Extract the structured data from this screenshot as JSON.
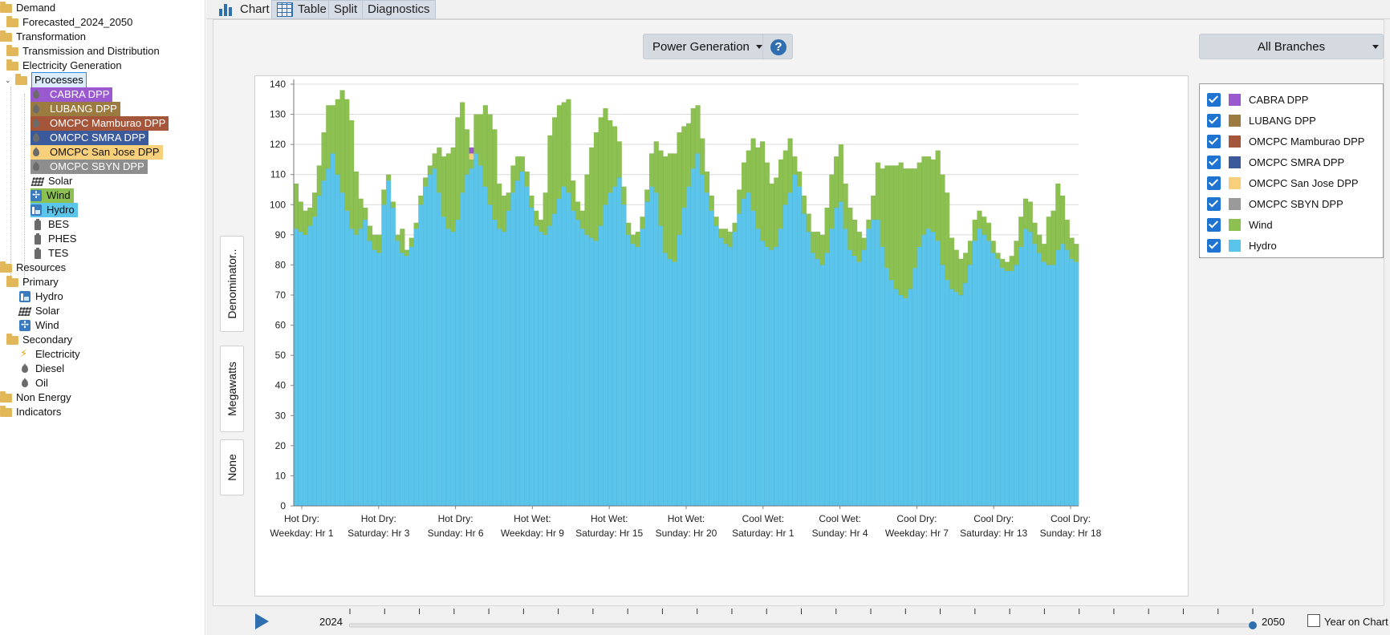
{
  "tree": {
    "demand": "Demand",
    "forecasted": "Forecasted_2024_2050",
    "transformation": "Transformation",
    "transmission": "Transmission and Distribution",
    "electricity_generation": "Electricity Generation",
    "processes": "Processes",
    "process_items": [
      {
        "label": "CABRA DPP",
        "color": "#9b59d0"
      },
      {
        "label": "LUBANG DPP",
        "color": "#9b7b3f"
      },
      {
        "label": "OMCPC Mamburao DPP",
        "color": "#a4553a"
      },
      {
        "label": "OMCPC SMRA DPP",
        "color": "#3b5a9b"
      },
      {
        "label": "OMCPC San Jose DPP",
        "color": "#f8cf7a"
      },
      {
        "label": "OMCPC SBYN DPP",
        "color": "#8e8e8e"
      }
    ],
    "solar": "Solar",
    "wind": "Wind",
    "hydro": "Hydro",
    "bes": "BES",
    "phes": "PHES",
    "tes": "TES",
    "resources": "Resources",
    "primary": "Primary",
    "primary_hydro": "Hydro",
    "primary_solar": "Solar",
    "primary_wind": "Wind",
    "secondary": "Secondary",
    "electricity": "Electricity",
    "diesel": "Diesel",
    "oil": "Oil",
    "non_energy": "Non Energy",
    "indicators": "Indicators"
  },
  "tabs": {
    "chart": "Chart",
    "table": "Table",
    "split": "Split",
    "diagnostics": "Diagnostics"
  },
  "toolbar": {
    "variable": "Power Generation",
    "help": "?",
    "branches": "All Branches"
  },
  "side_buttons": {
    "denominator": "Denominator..",
    "units": "Megawatts",
    "none": "None"
  },
  "timeline": {
    "start_year": "2024",
    "end_year": "2050",
    "year_on_chart": "Year on Chart"
  },
  "colors": {
    "hydro": "#5bc4ea",
    "wind": "#8cc152",
    "accent": "#2f6fb0"
  },
  "chart_data": {
    "type": "area",
    "stacked": true,
    "ylim": [
      0,
      140
    ],
    "yticks": [
      0,
      10,
      20,
      30,
      40,
      50,
      60,
      70,
      80,
      90,
      100,
      110,
      120,
      130,
      140
    ],
    "grid": true,
    "legend_position": "right",
    "x_tick_labels": [
      [
        "Hot Dry:",
        "Weekday: Hr 1"
      ],
      [
        "Hot Dry:",
        "Saturday: Hr 3"
      ],
      [
        "Hot Dry:",
        "Sunday: Hr 6"
      ],
      [
        "Hot Wet:",
        "Weekday: Hr 9"
      ],
      [
        "Hot Wet:",
        "Saturday: Hr 15"
      ],
      [
        "Hot Wet:",
        "Sunday: Hr 20"
      ],
      [
        "Cool Wet:",
        "Saturday: Hr 1"
      ],
      [
        "Cool Wet:",
        "Sunday: Hr 4"
      ],
      [
        "Cool Dry:",
        "Weekday: Hr 7"
      ],
      [
        "Cool Dry:",
        "Saturday: Hr 13"
      ],
      [
        "Cool Dry:",
        "Sunday: Hr 18"
      ]
    ],
    "legend": [
      {
        "name": "CABRA  DPP",
        "color": "#9b59d0"
      },
      {
        "name": "LUBANG  DPP",
        "color": "#9b7b3f"
      },
      {
        "name": "OMCPC Mamburao DPP",
        "color": "#a4553a"
      },
      {
        "name": "OMCPC  SMRA  DPP",
        "color": "#3b5a9b"
      },
      {
        "name": "OMCPC San Jose DPP",
        "color": "#f8cf7a"
      },
      {
        "name": "OMCPC  SBYN  DPP",
        "color": "#9a9a9a"
      },
      {
        "name": "Wind",
        "color": "#8cc152"
      },
      {
        "name": "Hydro",
        "color": "#5bc4ea"
      }
    ],
    "series": [
      {
        "name": "Hydro",
        "color": "#5bc4ea",
        "values": [
          92,
          91,
          90,
          93,
          96,
          103,
          108,
          112,
          117,
          110,
          104,
          98,
          92,
          90,
          92,
          95,
          88,
          85,
          84,
          100,
          108,
          99,
          88,
          84,
          83,
          86,
          92,
          100,
          106,
          110,
          112,
          104,
          96,
          92,
          91,
          95,
          104,
          110,
          112,
          117,
          113,
          106,
          100,
          95,
          92,
          91,
          98,
          104,
          108,
          111,
          106,
          99,
          93,
          91,
          90,
          93,
          97,
          102,
          106,
          104,
          98,
          95,
          92,
          90,
          89,
          88,
          93,
          100,
          104,
          106,
          109,
          100,
          90,
          87,
          86,
          92,
          101,
          106,
          104,
          93,
          84,
          82,
          81,
          90,
          99,
          106,
          112,
          117,
          110,
          104,
          98,
          93,
          89,
          87,
          86,
          91,
          97,
          102,
          104,
          98,
          92,
          88,
          86,
          85,
          86,
          92,
          100,
          104,
          110,
          106,
          97,
          91,
          84,
          82,
          80,
          84,
          92,
          99,
          101,
          92,
          85,
          83,
          81,
          85,
          92,
          95,
          95,
          86,
          79,
          75,
          72,
          70,
          69,
          72,
          79,
          86,
          90,
          92,
          91,
          88,
          80,
          75,
          72,
          71,
          70,
          74,
          80,
          88,
          92,
          90,
          88,
          84,
          82,
          79,
          78,
          78,
          80,
          86,
          92,
          91,
          87,
          84,
          81,
          80,
          80,
          85,
          87,
          85,
          82,
          81
        ]
      },
      {
        "name": "Wind",
        "color": "#8cc152",
        "values": [
          15,
          10,
          8,
          6,
          8,
          10,
          16,
          21,
          16,
          25,
          34,
          37,
          36,
          21,
          10,
          4,
          5,
          5,
          6,
          5,
          2,
          2,
          2,
          8,
          2,
          3,
          2,
          3,
          3,
          3,
          5,
          15,
          20,
          25,
          28,
          34,
          30,
          15,
          3,
          13,
          17,
          27,
          30,
          30,
          15,
          12,
          6,
          9,
          8,
          5,
          5,
          4,
          5,
          4,
          14,
          30,
          32,
          31,
          28,
          31,
          10,
          6,
          6,
          20,
          30,
          36,
          36,
          32,
          24,
          20,
          12,
          6,
          4,
          3,
          5,
          4,
          4,
          11,
          17,
          25,
          32,
          35,
          36,
          34,
          27,
          21,
          20,
          16,
          12,
          7,
          5,
          3,
          3,
          5,
          5,
          3,
          8,
          12,
          14,
          24,
          27,
          33,
          28,
          22,
          23,
          23,
          18,
          18,
          6,
          5,
          6,
          6,
          7,
          9,
          10,
          15,
          18,
          17,
          19,
          15,
          14,
          12,
          10,
          4,
          3,
          8,
          19,
          26,
          34,
          38,
          41,
          44,
          43,
          40,
          33,
          28,
          26,
          24,
          24,
          30,
          30,
          29,
          17,
          14,
          12,
          10,
          8,
          7,
          6,
          6,
          6,
          4,
          2,
          3,
          3,
          5,
          8,
          10,
          10,
          10,
          7,
          6,
          6,
          16,
          18,
          22,
          16,
          10,
          7,
          6
        ]
      },
      {
        "name": "OMCPC San Jose DPP",
        "color": "#f8cf7a",
        "values": [
          0,
          0,
          0,
          0,
          0,
          0,
          0,
          0,
          0,
          0,
          0,
          0,
          0,
          0,
          0,
          0,
          0,
          0,
          0,
          0,
          0,
          0,
          0,
          0,
          0,
          0,
          0,
          0,
          0,
          0,
          0,
          0,
          0,
          0,
          0,
          0,
          0,
          0,
          2,
          0,
          0,
          0,
          0,
          0,
          0,
          0,
          0,
          0,
          0,
          0,
          0,
          0,
          0,
          0,
          0,
          0,
          0,
          0,
          0,
          0,
          0,
          0,
          0,
          0,
          0,
          0,
          0,
          0,
          0,
          0,
          0,
          0,
          0,
          0,
          0,
          0,
          0,
          0,
          0,
          0,
          0,
          0,
          0,
          0,
          0,
          0,
          0,
          0,
          0,
          0,
          0,
          0,
          0,
          0,
          0,
          0,
          0,
          0,
          0,
          0,
          0,
          0,
          0,
          0,
          0,
          0,
          0,
          0,
          0,
          0,
          0,
          0,
          0,
          0,
          0,
          0,
          0,
          0,
          0,
          0,
          0,
          0,
          0,
          0,
          0,
          0,
          0,
          0,
          0,
          0,
          0,
          0,
          0,
          0,
          0,
          0,
          0,
          0,
          0,
          0,
          0,
          0,
          0,
          0,
          0,
          0,
          0,
          0,
          0,
          0,
          0,
          0,
          0,
          0,
          0,
          0,
          0,
          0,
          0,
          0,
          0,
          0,
          0,
          0,
          0,
          0,
          0,
          0,
          0,
          0
        ]
      },
      {
        "name": "CABRA DPP",
        "color": "#9b59d0",
        "values": [
          0,
          0,
          0,
          0,
          0,
          0,
          0,
          0,
          0,
          0,
          0,
          0,
          0,
          0,
          0,
          0,
          0,
          0,
          0,
          0,
          0,
          0,
          0,
          0,
          0,
          0,
          0,
          0,
          0,
          0,
          0,
          0,
          0,
          0,
          0,
          0,
          0,
          0,
          2,
          0,
          0,
          0,
          0,
          0,
          0,
          0,
          0,
          0,
          0,
          0,
          0,
          0,
          0,
          0,
          0,
          0,
          0,
          0,
          0,
          0,
          0,
          0,
          0,
          0,
          0,
          0,
          0,
          0,
          0,
          0,
          0,
          0,
          0,
          0,
          0,
          0,
          0,
          0,
          0,
          0,
          0,
          0,
          0,
          0,
          0,
          0,
          0,
          0,
          0,
          0,
          0,
          0,
          0,
          0,
          0,
          0,
          0,
          0,
          0,
          0,
          0,
          0,
          0,
          0,
          0,
          0,
          0,
          0,
          0,
          0,
          0,
          0,
          0,
          0,
          0,
          0,
          0,
          0,
          0,
          0,
          0,
          0,
          0,
          0,
          0,
          0,
          0,
          0,
          0,
          0,
          0,
          0,
          0,
          0,
          0,
          0,
          0,
          0,
          0,
          0,
          0,
          0,
          0,
          0,
          0,
          0,
          0,
          0,
          0,
          0,
          0,
          0,
          0,
          0,
          0,
          0,
          0,
          0,
          0,
          0,
          0,
          0,
          0,
          0,
          0,
          0,
          0,
          0,
          0,
          0
        ]
      }
    ]
  }
}
